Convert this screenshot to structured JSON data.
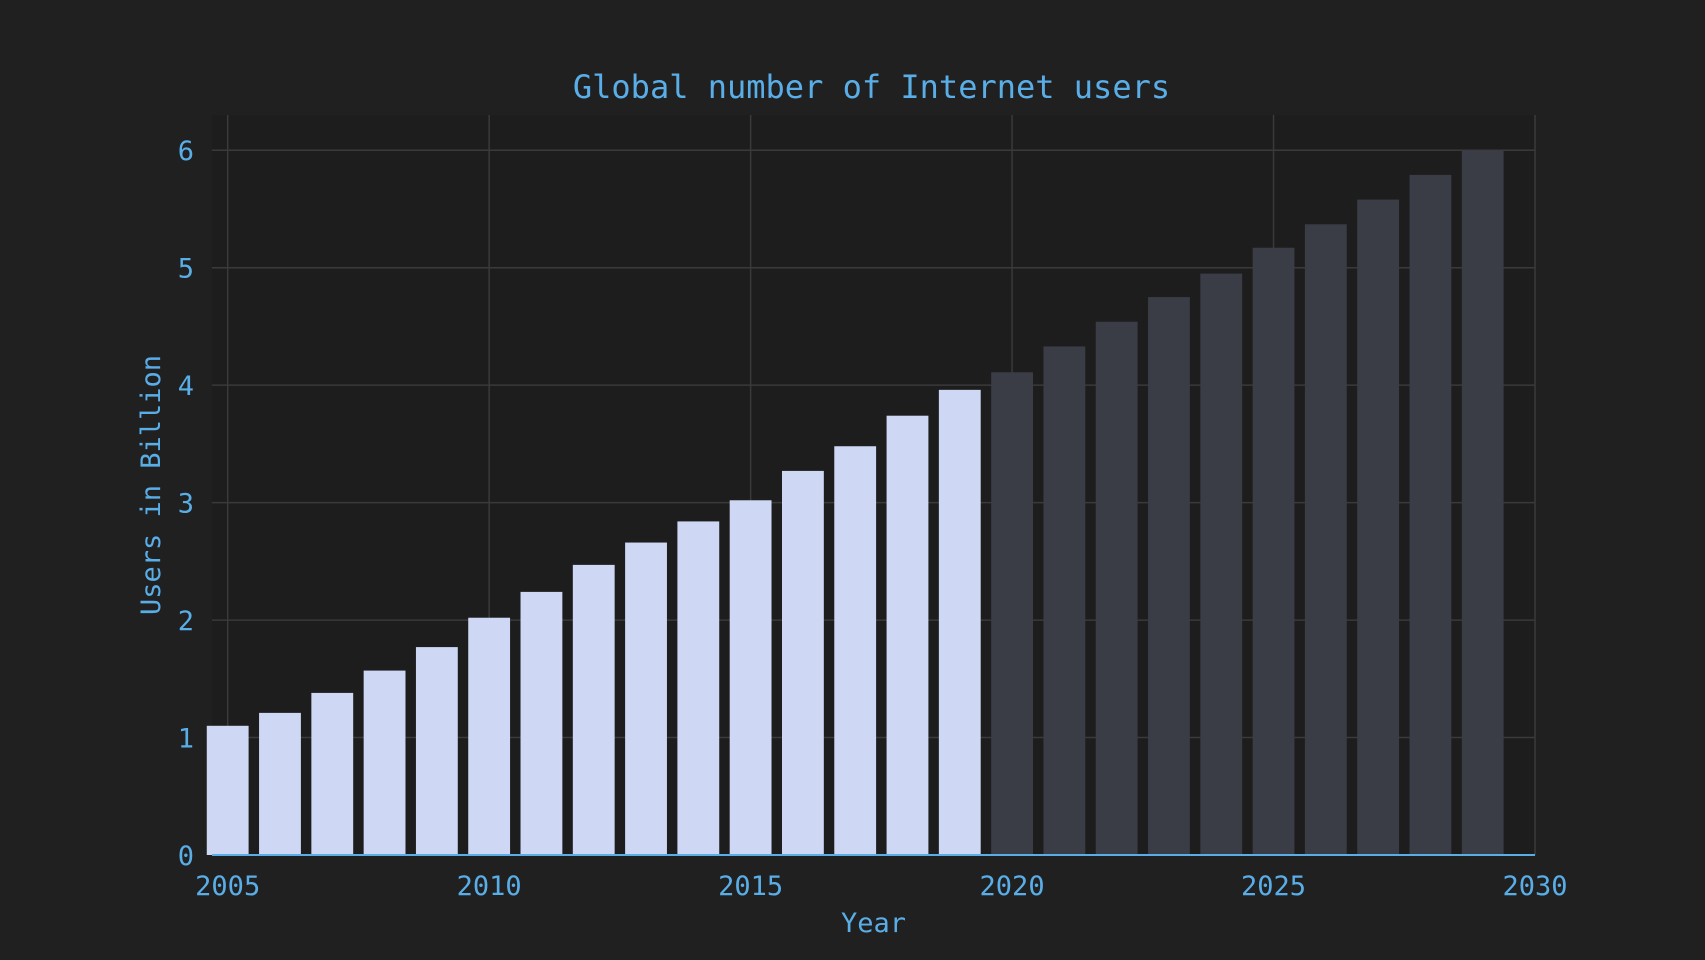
{
  "chart_data": {
    "type": "bar",
    "title": "Global number of Internet users",
    "xlabel": "Year",
    "ylabel": "Users in Billion",
    "x": [
      2005,
      2006,
      2007,
      2008,
      2009,
      2010,
      2011,
      2012,
      2013,
      2014,
      2015,
      2016,
      2017,
      2018,
      2019,
      2020,
      2021,
      2022,
      2023,
      2024,
      2025,
      2026,
      2027,
      2028,
      2029
    ],
    "values": [
      1.1,
      1.21,
      1.38,
      1.57,
      1.77,
      2.02,
      2.24,
      2.47,
      2.66,
      2.84,
      3.02,
      3.27,
      3.48,
      3.74,
      3.96,
      4.11,
      4.33,
      4.54,
      4.75,
      4.95,
      5.17,
      5.37,
      5.58,
      5.79,
      6.0
    ],
    "projected_from": 2020,
    "xlim": [
      2004.7,
      2030
    ],
    "ylim": [
      0,
      6.3
    ],
    "xticks": [
      2005,
      2010,
      2015,
      2020,
      2025,
      2030
    ],
    "yticks": [
      0,
      1,
      2,
      3,
      4,
      5,
      6
    ],
    "grid": true,
    "colors": {
      "background": "#202020",
      "plot_background": "#1d1d1d",
      "actual_bar": "#ced8f5",
      "projected_bar": "#3a3c46",
      "text": "#5aaee8",
      "grid": "#3a3a3a"
    }
  }
}
